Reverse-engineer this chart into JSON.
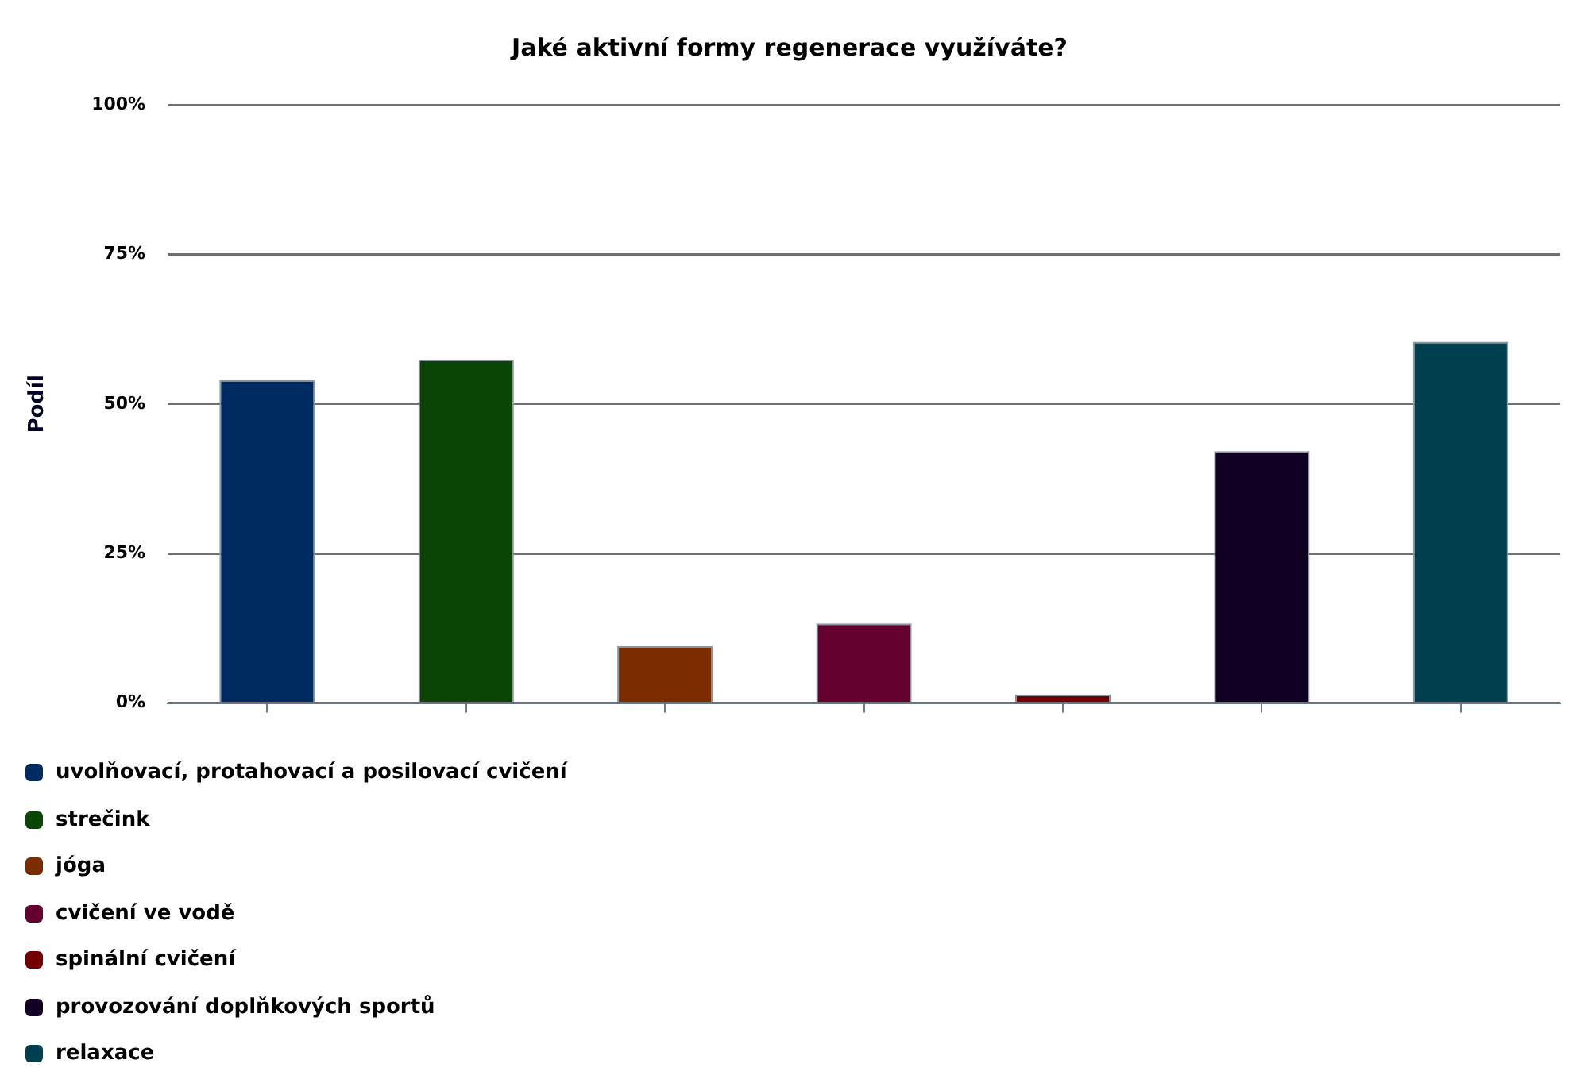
{
  "chart_data": {
    "type": "bar",
    "title": "Jaké aktivní formy regenerace využíváte?",
    "ylabel": "Podíl",
    "categories": [
      null,
      null,
      null,
      null,
      null,
      null,
      null
    ],
    "series": [
      {
        "name": "uvolňovací, protahovací a posilovací cvičení",
        "color": "#002b60",
        "values": [
          54.0,
          null,
          null,
          null,
          null,
          null,
          null
        ]
      },
      {
        "name": "strečink",
        "color": "#0a4506",
        "values": [
          null,
          57.4,
          null,
          null,
          null,
          null,
          null
        ]
      },
      {
        "name": "jóga",
        "color": "#7a2d00",
        "values": [
          null,
          null,
          9.5,
          null,
          null,
          null,
          null
        ]
      },
      {
        "name": "cvičení ve vodě",
        "color": "#64002e",
        "values": [
          null,
          null,
          null,
          13.3,
          null,
          null,
          null
        ]
      },
      {
        "name": "spinální cvičení",
        "color": "#720000",
        "values": [
          null,
          null,
          null,
          null,
          1.4,
          null,
          null
        ]
      },
      {
        "name": "provozování doplňkových sportů",
        "color": "#120024",
        "values": [
          null,
          null,
          null,
          null,
          null,
          42.1,
          null
        ]
      },
      {
        "name": "relaxace",
        "color": "#003f4e",
        "values": [
          null,
          null,
          null,
          null,
          null,
          null,
          60.4
        ]
      }
    ],
    "ylim": [
      0,
      100
    ],
    "yticks": [
      {
        "value": 0,
        "label": "0%"
      },
      {
        "value": 25,
        "label": "25%"
      },
      {
        "value": 50,
        "label": "50%"
      },
      {
        "value": 75,
        "label": "75%"
      },
      {
        "value": 100,
        "label": "100%"
      }
    ],
    "grid": "y",
    "legend": "bottom left"
  }
}
